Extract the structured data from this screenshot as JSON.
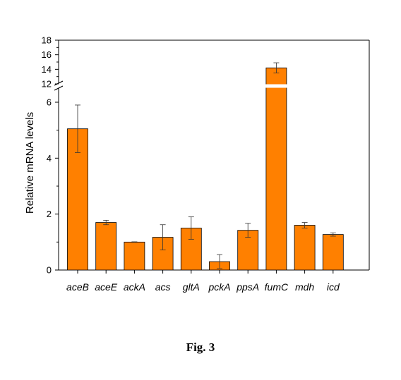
{
  "chart_data": {
    "type": "bar",
    "ylabel": "Relative mRNA levels",
    "xlabel": "",
    "categories": [
      "aceB",
      "aceE",
      "ackA",
      "acs",
      "gltA",
      "pckA",
      "ppsA",
      "fumC",
      "mdh",
      "icd"
    ],
    "values": [
      5.05,
      1.7,
      1.0,
      1.17,
      1.5,
      0.3,
      1.42,
      14.2,
      1.6,
      1.27
    ],
    "errors": [
      0.85,
      0.08,
      0.01,
      0.45,
      0.4,
      0.25,
      0.25,
      0.7,
      0.1,
      0.06
    ],
    "y_axis_broken": true,
    "y_break": [
      6.3,
      12.0
    ],
    "ylim_lower": [
      0,
      6.3
    ],
    "ylim_upper": [
      12,
      18
    ],
    "y_ticks_lower": [
      "0",
      "2",
      "4",
      "6"
    ],
    "y_ticks_upper": [
      "12",
      "14",
      "16",
      "18"
    ],
    "bar_color": "#ff8000",
    "bar_edge_color": "#000000",
    "grid": false,
    "legend": "none"
  },
  "caption": "Fig. 3"
}
